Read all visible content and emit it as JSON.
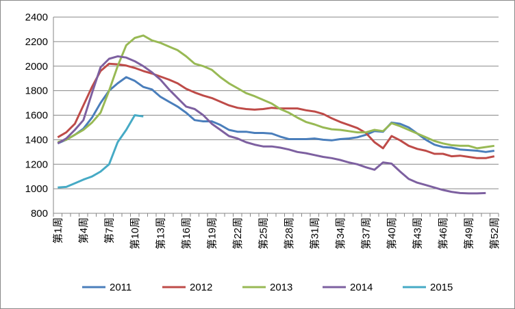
{
  "chart_data": {
    "type": "line",
    "categories": [
      "第1周",
      null,
      null,
      "第4周",
      null,
      null,
      "第7周",
      null,
      null,
      "第10周",
      null,
      null,
      "第13周",
      null,
      null,
      "第16周",
      null,
      null,
      "第19周",
      null,
      null,
      "第22周",
      null,
      null,
      "第25周",
      null,
      null,
      "第28周",
      null,
      null,
      "第31周",
      null,
      null,
      "第34周",
      null,
      null,
      "第37周",
      null,
      null,
      "第40周",
      null,
      null,
      "第43周",
      null,
      null,
      "第46周",
      null,
      null,
      "第49周",
      null,
      null,
      "第52周"
    ],
    "series": [
      {
        "name": "2011",
        "color": "#4a7ebb",
        "values": [
          1370,
          1400,
          1440,
          1490,
          1580,
          1700,
          1800,
          1860,
          1910,
          1880,
          1830,
          1810,
          1750,
          1710,
          1670,
          1620,
          1560,
          1550,
          1550,
          1520,
          1480,
          1465,
          1465,
          1455,
          1455,
          1450,
          1425,
          1405,
          1405,
          1405,
          1410,
          1400,
          1395,
          1405,
          1410,
          1420,
          1440,
          1470,
          1465,
          1540,
          1530,
          1500,
          1450,
          1400,
          1360,
          1340,
          1335,
          1320,
          1315,
          1310,
          1300,
          1310
        ]
      },
      {
        "name": "2012",
        "color": "#be4b48",
        "values": [
          1420,
          1460,
          1530,
          1680,
          1830,
          1960,
          2020,
          2015,
          2005,
          1985,
          1960,
          1940,
          1915,
          1890,
          1860,
          1815,
          1785,
          1760,
          1740,
          1710,
          1680,
          1660,
          1650,
          1645,
          1650,
          1660,
          1655,
          1655,
          1655,
          1640,
          1630,
          1610,
          1575,
          1545,
          1520,
          1495,
          1455,
          1380,
          1330,
          1430,
          1395,
          1350,
          1325,
          1310,
          1285,
          1285,
          1265,
          1270,
          1260,
          1250,
          1250,
          1265
        ]
      },
      {
        "name": "2013",
        "color": "#98b954",
        "values": [
          1380,
          1400,
          1440,
          1480,
          1540,
          1620,
          1800,
          2000,
          2170,
          2230,
          2250,
          2210,
          2190,
          2160,
          2130,
          2080,
          2020,
          2000,
          1970,
          1910,
          1860,
          1820,
          1780,
          1755,
          1725,
          1695,
          1650,
          1620,
          1580,
          1545,
          1525,
          1500,
          1485,
          1480,
          1470,
          1460,
          1460,
          1480,
          1470,
          1535,
          1510,
          1480,
          1450,
          1420,
          1390,
          1370,
          1355,
          1350,
          1350,
          1330,
          1340,
          1350
        ]
      },
      {
        "name": "2014",
        "color": "#7d60a0",
        "values": [
          1370,
          1410,
          1480,
          1560,
          1780,
          1990,
          2060,
          2080,
          2070,
          2040,
          2000,
          1950,
          1890,
          1810,
          1740,
          1670,
          1650,
          1600,
          1530,
          1480,
          1430,
          1410,
          1380,
          1360,
          1345,
          1345,
          1335,
          1320,
          1300,
          1290,
          1275,
          1260,
          1250,
          1235,
          1215,
          1200,
          1175,
          1155,
          1215,
          1205,
          1140,
          1080,
          1050,
          1030,
          1010,
          990,
          975,
          965,
          962,
          962,
          965,
          null
        ]
      },
      {
        "name": "2015",
        "color": "#46aac5",
        "values": [
          1010,
          1015,
          1045,
          1075,
          1100,
          1140,
          1200,
          1380,
          1480,
          1600,
          1590,
          null,
          null,
          null,
          null,
          null,
          null,
          null,
          null,
          null,
          null,
          null,
          null,
          null,
          null,
          null,
          null,
          null,
          null,
          null,
          null,
          null,
          null,
          null,
          null,
          null,
          null,
          null,
          null,
          null,
          null,
          null,
          null,
          null,
          null,
          null,
          null,
          null,
          null,
          null,
          null,
          null
        ]
      }
    ],
    "ylim": [
      800,
      2400
    ],
    "yticks": [
      800,
      1000,
      1200,
      1400,
      1600,
      1800,
      2000,
      2200,
      2400
    ],
    "grid": true,
    "legend": "bottom"
  }
}
